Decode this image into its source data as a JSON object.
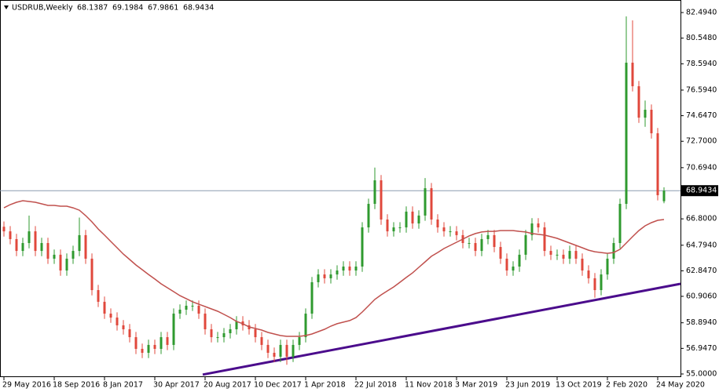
{
  "chart_data": {
    "type": "candlestick",
    "title": "USDRUB,Weekly",
    "categories": [
      "29 May 2016",
      null,
      null,
      null,
      null,
      null,
      null,
      null,
      "18 Sep 2016",
      null,
      null,
      null,
      null,
      null,
      null,
      null,
      "8 Jan 2017",
      null,
      null,
      null,
      null,
      null,
      null,
      null,
      "30 Apr 2017",
      null,
      null,
      null,
      null,
      null,
      null,
      null,
      "20 Aug 2017",
      null,
      null,
      null,
      null,
      null,
      null,
      null,
      "10 Dec 2017",
      null,
      null,
      null,
      null,
      null,
      null,
      null,
      "1 Apr 2018",
      null,
      null,
      null,
      null,
      null,
      null,
      null,
      "22 Jul 2018",
      null,
      null,
      null,
      null,
      null,
      null,
      null,
      "11 Nov 2018",
      null,
      null,
      null,
      null,
      null,
      null,
      null,
      "3 Mar 2019",
      null,
      null,
      null,
      null,
      null,
      null,
      null,
      "23 Jun 2019",
      null,
      null,
      null,
      null,
      null,
      null,
      null,
      "13 Oct 2019",
      null,
      null,
      null,
      null,
      null,
      null,
      null,
      "2 Feb 2020",
      null,
      null,
      null,
      null,
      null,
      null,
      null,
      "24 May 2020",
      null
    ],
    "open": [
      66.2,
      65.85,
      65.26,
      64.36,
      64.96,
      65.85,
      64.36,
      64.96,
      63.77,
      64.07,
      62.87,
      63.77,
      64.36,
      65.56,
      63.77,
      61.38,
      60.49,
      59.59,
      59.29,
      58.7,
      58.4,
      57.8,
      56.91,
      56.61,
      57.21,
      56.91,
      57.8,
      57.21,
      59.59,
      59.89,
      60.19,
      60.19,
      59.59,
      58.4,
      57.8,
      57.8,
      58.1,
      58.4,
      59.0,
      58.7,
      58.4,
      57.8,
      57.21,
      56.61,
      56.31,
      57.21,
      56.31,
      57.21,
      57.8,
      59.59,
      61.98,
      62.57,
      62.28,
      62.57,
      62.87,
      63.17,
      62.87,
      63.17,
      66.15,
      67.94,
      69.73,
      66.75,
      65.85,
      66.15,
      66.15,
      67.35,
      66.45,
      67.05,
      69.13,
      66.75,
      66.15,
      65.85,
      65.85,
      65.56,
      64.96,
      64.96,
      64.36,
      65.26,
      65.56,
      64.66,
      63.77,
      62.87,
      63.17,
      64.07,
      65.56,
      66.45,
      66.15,
      64.36,
      64.07,
      64.07,
      63.77,
      64.36,
      63.77,
      62.87,
      62.28,
      61.38,
      62.57,
      63.77,
      64.96,
      67.94,
      78.68,
      76.89,
      74.5,
      75.1,
      73.31,
      68.1387
    ],
    "high": [
      66.6,
      66.25,
      65.66,
      65.36,
      67.05,
      66.25,
      65.36,
      65.36,
      64.47,
      64.47,
      64.17,
      64.76,
      66.9,
      65.96,
      64.17,
      61.78,
      60.89,
      59.99,
      59.69,
      59.1,
      58.8,
      58.2,
      57.31,
      57.61,
      57.61,
      58.2,
      58.2,
      59.99,
      60.29,
      60.59,
      60.59,
      60.59,
      59.99,
      58.8,
      58.2,
      58.5,
      58.8,
      59.4,
      59.4,
      59.1,
      58.8,
      58.2,
      57.61,
      57.01,
      57.61,
      57.61,
      57.61,
      58.2,
      59.99,
      62.38,
      62.97,
      62.97,
      62.97,
      63.27,
      63.57,
      63.57,
      63.57,
      66.55,
      68.34,
      70.7,
      70.13,
      67.15,
      66.55,
      66.55,
      67.75,
      67.75,
      67.45,
      69.9,
      69.53,
      67.15,
      66.55,
      66.25,
      66.25,
      65.96,
      65.36,
      65.36,
      65.66,
      65.96,
      65.96,
      65.06,
      64.17,
      63.57,
      64.47,
      65.96,
      66.85,
      66.85,
      66.55,
      64.76,
      64.47,
      64.47,
      64.76,
      64.76,
      64.17,
      63.27,
      62.68,
      62.97,
      64.17,
      65.36,
      68.34,
      82.2,
      81.9,
      77.29,
      75.8,
      75.5,
      73.71,
      69.1984
    ],
    "low": [
      65.45,
      64.86,
      63.96,
      63.96,
      64.56,
      63.96,
      63.96,
      63.37,
      63.37,
      62.47,
      62.47,
      63.37,
      63.96,
      63.37,
      60.98,
      60.09,
      59.19,
      58.89,
      58.3,
      58.0,
      57.4,
      56.51,
      56.21,
      56.21,
      56.51,
      56.51,
      56.81,
      56.81,
      59.19,
      59.49,
      59.79,
      59.19,
      58.0,
      57.4,
      57.4,
      57.4,
      57.7,
      58.0,
      58.3,
      58.0,
      57.4,
      56.81,
      56.21,
      55.91,
      55.91,
      55.7,
      55.91,
      56.81,
      57.4,
      59.19,
      61.58,
      61.88,
      61.88,
      62.17,
      62.47,
      62.47,
      62.47,
      62.77,
      65.75,
      67.54,
      66.35,
      65.45,
      65.45,
      65.75,
      65.75,
      66.05,
      66.05,
      66.65,
      66.35,
      65.75,
      65.45,
      65.45,
      65.16,
      64.56,
      64.56,
      63.96,
      63.96,
      64.86,
      64.26,
      63.37,
      62.47,
      62.47,
      62.77,
      63.67,
      65.16,
      65.75,
      63.96,
      63.67,
      63.67,
      63.37,
      63.37,
      63.37,
      62.47,
      61.88,
      60.8,
      60.98,
      62.17,
      63.37,
      64.56,
      67.54,
      76.49,
      74.1,
      73.8,
      72.91,
      68.2,
      67.9861
    ],
    "close": [
      65.85,
      65.26,
      64.36,
      64.96,
      65.85,
      64.36,
      64.96,
      63.77,
      64.07,
      62.87,
      63.77,
      64.36,
      65.56,
      63.77,
      61.38,
      60.49,
      59.59,
      59.29,
      58.7,
      58.4,
      57.8,
      56.91,
      56.61,
      57.21,
      56.91,
      57.8,
      57.21,
      59.59,
      59.89,
      60.19,
      60.19,
      59.59,
      58.4,
      57.8,
      57.8,
      58.1,
      58.4,
      59.0,
      58.7,
      58.4,
      57.8,
      57.21,
      56.61,
      56.31,
      57.21,
      56.31,
      57.21,
      57.8,
      59.59,
      61.98,
      62.57,
      62.28,
      62.57,
      62.87,
      63.17,
      62.87,
      63.17,
      66.15,
      67.94,
      69.73,
      66.75,
      65.85,
      66.15,
      66.15,
      67.35,
      66.45,
      67.05,
      69.13,
      66.75,
      66.15,
      65.85,
      65.85,
      65.56,
      64.96,
      64.96,
      64.36,
      65.26,
      65.56,
      64.66,
      63.77,
      62.87,
      63.17,
      64.07,
      65.56,
      66.45,
      66.15,
      64.36,
      64.07,
      64.07,
      63.77,
      64.36,
      63.77,
      62.87,
      62.28,
      61.38,
      62.57,
      63.77,
      64.96,
      67.94,
      78.68,
      76.89,
      74.5,
      75.1,
      73.31,
      68.6,
      68.9434
    ],
    "up_color": "#2f9a2f",
    "down_color": "#e0483c",
    "moving_average": {
      "color": "#c0504d",
      "values": [
        67.64,
        67.88,
        68.06,
        68.18,
        68.12,
        68.06,
        67.94,
        67.82,
        67.82,
        67.76,
        67.76,
        67.64,
        67.46,
        67.05,
        66.57,
        66.03,
        65.56,
        65.08,
        64.6,
        64.12,
        63.71,
        63.29,
        62.93,
        62.57,
        62.22,
        61.86,
        61.56,
        61.26,
        60.96,
        60.73,
        60.49,
        60.31,
        60.13,
        59.95,
        59.77,
        59.53,
        59.29,
        59.0,
        58.82,
        58.58,
        58.46,
        58.34,
        58.16,
        58.04,
        57.92,
        57.86,
        57.86,
        57.86,
        57.92,
        58.04,
        58.22,
        58.4,
        58.64,
        58.82,
        58.94,
        59.06,
        59.29,
        59.71,
        60.19,
        60.67,
        61.02,
        61.32,
        61.62,
        61.98,
        62.34,
        62.69,
        63.11,
        63.53,
        63.95,
        64.24,
        64.54,
        64.78,
        65.02,
        65.26,
        65.5,
        65.68,
        65.8,
        65.85,
        65.85,
        65.91,
        65.91,
        65.91,
        65.85,
        65.8,
        65.68,
        65.62,
        65.56,
        65.44,
        65.32,
        65.14,
        64.96,
        64.78,
        64.6,
        64.42,
        64.3,
        64.24,
        64.18,
        64.24,
        64.48,
        64.96,
        65.44,
        65.91,
        66.27,
        66.51,
        66.69,
        66.75
      ]
    },
    "trendline": {
      "color": "#4b0c8c",
      "values": [
        54.95,
        61.86
      ]
    },
    "price_line_color": "#8a9bb0",
    "ylim": [
      55,
      82.494
    ],
    "yticks": [
      {
        "value": 82.494,
        "label": "82.4940"
      },
      {
        "value": 80.548,
        "label": "80.5480"
      },
      {
        "value": 78.594,
        "label": "78.5940"
      },
      {
        "value": 76.594,
        "label": "76.5940"
      },
      {
        "value": 74.647,
        "label": "74.6470"
      },
      {
        "value": 72.7,
        "label": "72.7000"
      },
      {
        "value": 70.694,
        "label": "70.6940"
      },
      {
        "value": 66.8,
        "label": "66.8000"
      },
      {
        "value": 64.794,
        "label": "64.7940"
      },
      {
        "value": 62.847,
        "label": "62.8470"
      },
      {
        "value": 60.906,
        "label": "60.9060"
      },
      {
        "value": 58.894,
        "label": "58.8940"
      },
      {
        "value": 56.947,
        "label": "56.9470"
      },
      {
        "value": 55,
        "label": "55.0000"
      }
    ]
  }
}
